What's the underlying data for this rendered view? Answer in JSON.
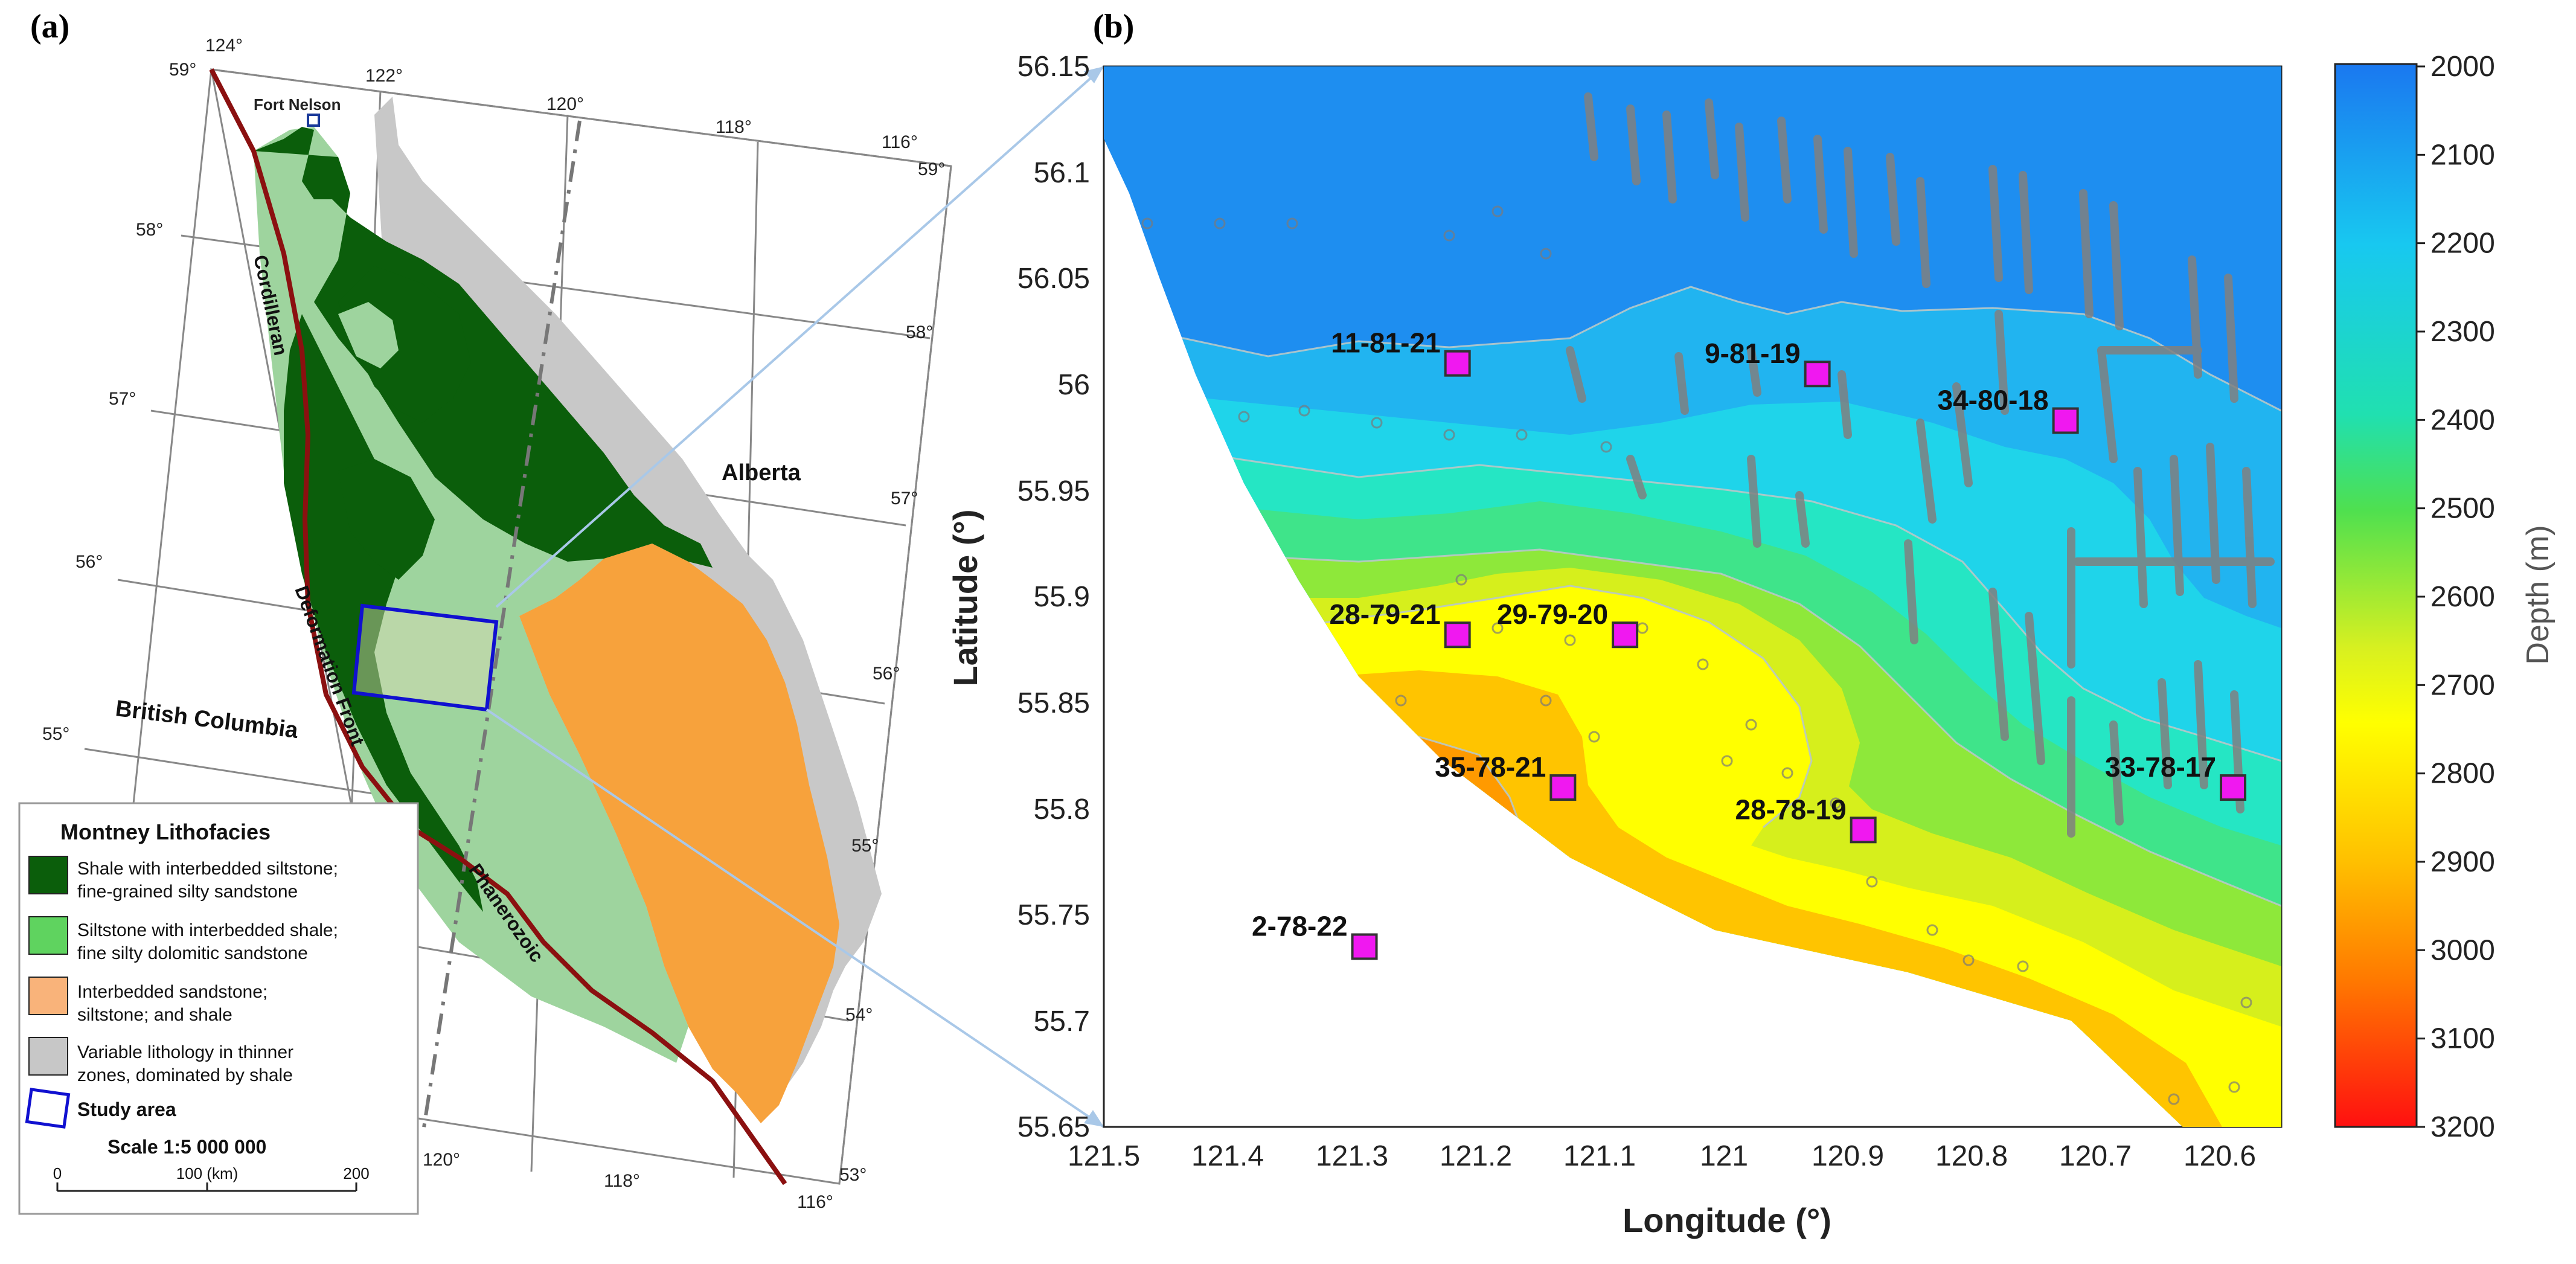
{
  "panel_a": {
    "label": "(a)",
    "place_labels": {
      "fort_nelson": "Fort Nelson",
      "alberta": "Alberta",
      "british_columbia": "British Columbia",
      "cordilleran": "Cordilleran",
      "deformation_front": "Deformation Front",
      "phanerozoic": "Phanerozoic"
    },
    "graticule": {
      "lon_top": [
        "124°",
        "122°",
        "120°",
        "118°",
        "116°"
      ],
      "lon_bottom": [
        "120°",
        "118°",
        "116°"
      ],
      "lat_left": [
        "59°",
        "58°",
        "57°",
        "56°",
        "55°"
      ],
      "lat_right": [
        "59°",
        "58°",
        "57°",
        "56°",
        "55°",
        "54°",
        "53°"
      ]
    },
    "legend": {
      "title": "Montney Lithofacies",
      "items": [
        {
          "line1": "Shale with interbedded siltstone;",
          "line2": "fine-grained silty sandstone",
          "color": "#0b5e0b"
        },
        {
          "line1": "Siltstone with interbedded shale;",
          "line2": "fine silty dolomitic sandstone",
          "color": "#5fd35f"
        },
        {
          "line1": "Interbedded sandstone;",
          "line2": "siltstone; and shale",
          "color": "#f9b37a"
        },
        {
          "line1": "Variable lithology in thinner",
          "line2": "zones, dominated by shale",
          "color": "#c7c7c7"
        }
      ],
      "study_area": "Study area",
      "scale_text": "Scale 1:5 000 000",
      "scale_ticks": [
        "0",
        "100 (km)",
        "200"
      ]
    }
  },
  "panel_b": {
    "label": "(b)",
    "xlabel": "Longitude (°)",
    "ylabel": "Latitude (°)",
    "colorbar_label": "Depth (m)"
  },
  "chart_data": {
    "type": "heatmap",
    "x_ticks": [
      "121.5",
      "121.4",
      "121.3",
      "121.2",
      "121.1",
      "121",
      "120.9",
      "120.8",
      "120.7",
      "120.6"
    ],
    "y_ticks": [
      "56.15",
      "56.1",
      "56.05",
      "56",
      "55.95",
      "55.9",
      "55.85",
      "55.8",
      "55.75",
      "55.7",
      "55.65"
    ],
    "xlim": [
      121.5,
      120.55
    ],
    "ylim": [
      55.65,
      56.15
    ],
    "colorbar_ticks": [
      "2000",
      "2100",
      "2200",
      "2300",
      "2400",
      "2500",
      "2600",
      "2700",
      "2800",
      "2900",
      "3000",
      "3100",
      "3200"
    ],
    "colorbar_range": [
      2000,
      3200
    ],
    "wells": [
      {
        "name": "11-81-21",
        "lon": 121.215,
        "lat": 56.01
      },
      {
        "name": "9-81-19",
        "lon": 120.925,
        "lat": 56.005
      },
      {
        "name": "34-80-18",
        "lon": 120.725,
        "lat": 55.983
      },
      {
        "name": "28-79-21",
        "lon": 121.215,
        "lat": 55.882
      },
      {
        "name": "29-79-20",
        "lon": 121.08,
        "lat": 55.882
      },
      {
        "name": "35-78-21",
        "lon": 121.13,
        "lat": 55.81
      },
      {
        "name": "28-78-19",
        "lon": 120.888,
        "lat": 55.79
      },
      {
        "name": "33-78-17",
        "lon": 120.59,
        "lat": 55.81
      },
      {
        "name": "2-78-22",
        "lon": 121.29,
        "lat": 55.735
      }
    ]
  }
}
